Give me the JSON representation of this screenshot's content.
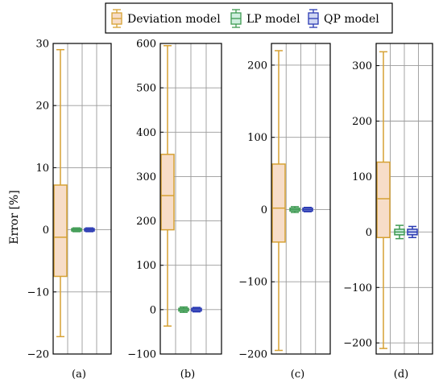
{
  "legend": {
    "entries": [
      {
        "label": "Deviation model",
        "color": "#D6A133",
        "fill": "#F7DDC8"
      },
      {
        "label": "LP model",
        "color": "#3E9A52",
        "fill": "#CFEFDF"
      },
      {
        "label": "QP model",
        "color": "#2B3BB3",
        "fill": "#CFD6F3"
      }
    ]
  },
  "ylabel": "Error [%]",
  "chart_data": [
    {
      "type": "box",
      "sublabel": "(a)",
      "ylim": [
        -20,
        30
      ],
      "yticks": [
        -20,
        -10,
        0,
        10,
        20,
        30
      ],
      "ytick_labels": [
        "−20",
        "−10",
        "0",
        "10",
        "20",
        "30"
      ],
      "grid": true,
      "boxes": [
        {
          "series": "Deviation model",
          "min": -17.2,
          "q1": -7.5,
          "median": -1.2,
          "q3": 7.2,
          "max": 29.0
        },
        {
          "series": "LP model",
          "min": -0.3,
          "q1": -0.15,
          "median": 0.0,
          "q3": 0.15,
          "max": 0.3
        },
        {
          "series": "QP model",
          "min": -0.3,
          "q1": -0.15,
          "median": 0.0,
          "q3": 0.15,
          "max": 0.3
        }
      ]
    },
    {
      "type": "box",
      "sublabel": "(b)",
      "ylim": [
        -100,
        600
      ],
      "yticks": [
        -100,
        0,
        100,
        200,
        300,
        400,
        500,
        600
      ],
      "ytick_labels": [
        "−100",
        "0",
        "100",
        "200",
        "300",
        "400",
        "500",
        "600"
      ],
      "grid": true,
      "boxes": [
        {
          "series": "Deviation model",
          "min": -37,
          "q1": 180,
          "median": 257,
          "q3": 350,
          "max": 595
        },
        {
          "series": "LP model",
          "min": -6,
          "q1": -3,
          "median": 0,
          "q3": 3,
          "max": 6
        },
        {
          "series": "QP model",
          "min": -5,
          "q1": -3,
          "median": 0,
          "q3": 3,
          "max": 5
        }
      ]
    },
    {
      "type": "box",
      "sublabel": "(c)",
      "ylim": [
        -200,
        230
      ],
      "yticks": [
        -200,
        -100,
        0,
        100,
        200
      ],
      "ytick_labels": [
        "−200",
        "−100",
        "0",
        "100",
        "200"
      ],
      "grid": true,
      "boxes": [
        {
          "series": "Deviation model",
          "min": -195,
          "q1": -45,
          "median": 2,
          "q3": 63,
          "max": 220
        },
        {
          "series": "LP model",
          "min": -4,
          "q1": -2,
          "median": 0,
          "q3": 2,
          "max": 4
        },
        {
          "series": "QP model",
          "min": -3,
          "q1": -2,
          "median": 0,
          "q3": 2,
          "max": 3
        }
      ]
    },
    {
      "type": "box",
      "sublabel": "(d)",
      "ylim": [
        -220,
        340
      ],
      "yticks": [
        -200,
        -100,
        0,
        100,
        200,
        300
      ],
      "ytick_labels": [
        "−200",
        "−100",
        "0",
        "100",
        "200",
        "300"
      ],
      "grid": true,
      "boxes": [
        {
          "series": "Deviation model",
          "min": -210,
          "q1": -10,
          "median": 60,
          "q3": 126,
          "max": 325
        },
        {
          "series": "LP model",
          "min": -12,
          "q1": -5,
          "median": 0,
          "q3": 5,
          "max": 12
        },
        {
          "series": "QP model",
          "min": -10,
          "q1": -5,
          "median": 0,
          "q3": 5,
          "max": 10
        }
      ]
    }
  ]
}
